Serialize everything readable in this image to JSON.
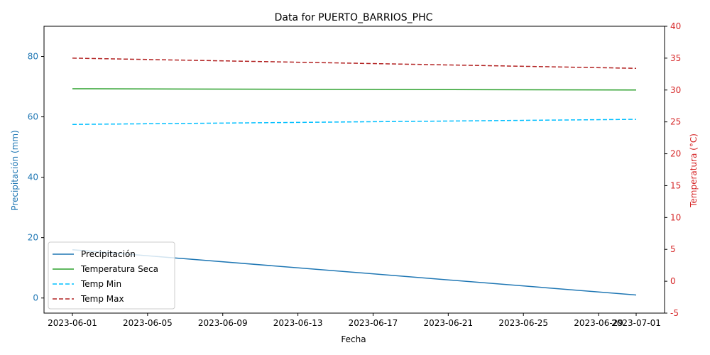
{
  "chart_data": {
    "type": "line",
    "title": "Data for PUERTO_BARRIOS_PHC",
    "xlabel": "Fecha",
    "ylabel_left": "Precipitación (mm)",
    "ylabel_right": "Temperatura (°C)",
    "x": [
      "2023-06-01",
      "2023-07-01"
    ],
    "x_ticks": [
      "2023-06-01",
      "2023-06-05",
      "2023-06-09",
      "2023-06-13",
      "2023-06-17",
      "2023-06-21",
      "2023-06-25",
      "2023-06-29",
      "2023-07-01"
    ],
    "ylim_left": [
      -5,
      90
    ],
    "yticks_left": [
      0,
      20,
      40,
      60,
      80
    ],
    "ylim_right": [
      -5,
      40
    ],
    "yticks_right": [
      -5,
      0,
      5,
      10,
      15,
      20,
      25,
      30,
      35,
      40
    ],
    "series": [
      {
        "name": "Precipitación",
        "axis": "left",
        "style": "solid",
        "color": "#1f77b4",
        "values": [
          16,
          1
        ]
      },
      {
        "name": "Temperatura Seca",
        "axis": "right",
        "style": "solid",
        "color": "#2ca02c",
        "values": [
          30.2,
          30.0
        ]
      },
      {
        "name": "Temp Min",
        "axis": "right",
        "style": "dashed",
        "color": "#00bfff",
        "values": [
          24.6,
          25.4
        ]
      },
      {
        "name": "Temp Max",
        "axis": "right",
        "style": "dashed",
        "color": "#b22222",
        "values": [
          35.0,
          33.4
        ]
      }
    ],
    "left_axis_color": "#1f77b4",
    "right_axis_color": "#d62728",
    "grid": false,
    "legend_position": "lower-left"
  }
}
